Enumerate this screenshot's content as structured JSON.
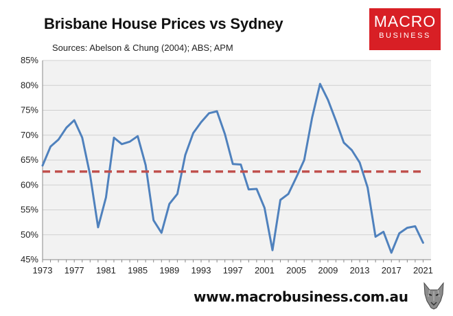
{
  "header": {
    "title": "Brisbane House Prices vs Sydney",
    "subtitle": "Sources: Abelson & Chung (2004); ABS; APM"
  },
  "logo": {
    "line1": "MACRO",
    "line2": "BUSINESS",
    "color": "#d81f25"
  },
  "footer": {
    "url": "www.macrobusiness.com.au"
  },
  "icons": {
    "footer_icon": "wolf-icon"
  },
  "chart_data": {
    "type": "line",
    "title": "Brisbane House Prices vs Sydney",
    "xlabel": "",
    "ylabel": "",
    "xlim": [
      1973,
      2022
    ],
    "ylim": [
      45,
      85
    ],
    "y_ticks": [
      "45%",
      "50%",
      "55%",
      "60%",
      "65%",
      "70%",
      "75%",
      "80%",
      "85%"
    ],
    "x_ticks": [
      "1973",
      "1977",
      "1981",
      "1985",
      "1989",
      "1993",
      "1997",
      "2001",
      "2005",
      "2009",
      "2013",
      "2017",
      "2021"
    ],
    "grid": true,
    "legend": "none",
    "series": [
      {
        "color": "#4f81bd",
        "style": "solid",
        "x": [
          1973,
          1974,
          1975,
          1976,
          1977,
          1978,
          1979,
          1980,
          1981,
          1982,
          1983,
          1984,
          1985,
          1986,
          1987,
          1988,
          1989,
          1990,
          1991,
          1992,
          1993,
          1994,
          1995,
          1996,
          1997,
          1998,
          1999,
          2000,
          2001,
          2002,
          2003,
          2004,
          2005,
          2006,
          2007,
          2008,
          2009,
          2010,
          2011,
          2012,
          2013,
          2014,
          2015,
          2016,
          2017,
          2018,
          2019,
          2020,
          2021
        ],
        "y": [
          63.9,
          67.7,
          69.1,
          71.5,
          73.0,
          69.5,
          62.0,
          51.5,
          57.5,
          69.5,
          68.2,
          68.7,
          69.8,
          64.0,
          52.9,
          50.4,
          56.2,
          58.2,
          66.0,
          70.4,
          72.6,
          74.4,
          74.8,
          70.2,
          64.2,
          64.1,
          59.1,
          59.2,
          55.4,
          46.9,
          57.0,
          58.2,
          61.5,
          65.0,
          73.5,
          80.3,
          77.1,
          72.9,
          68.5,
          67.0,
          64.5,
          59.5,
          49.6,
          50.6,
          46.4,
          50.3,
          51.4,
          51.7,
          48.4
        ]
      },
      {
        "color": "#c0504d",
        "style": "dashed",
        "x": [
          1973,
          2021
        ],
        "y": [
          62.7,
          62.7
        ]
      }
    ]
  }
}
